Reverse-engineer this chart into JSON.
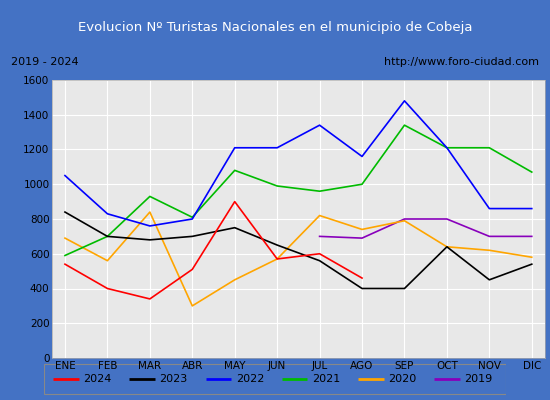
{
  "title": "Evolucion Nº Turistas Nacionales en el municipio de Cobeja",
  "subtitle_left": "2019 - 2024",
  "subtitle_right": "http://www.foro-ciudad.com",
  "months": [
    "ENE",
    "FEB",
    "MAR",
    "ABR",
    "MAY",
    "JUN",
    "JUL",
    "AGO",
    "SEP",
    "OCT",
    "NOV",
    "DIC"
  ],
  "series": {
    "2024": [
      540,
      400,
      340,
      510,
      900,
      570,
      600,
      460,
      null,
      null,
      null,
      null
    ],
    "2023": [
      840,
      700,
      680,
      700,
      750,
      650,
      560,
      400,
      400,
      640,
      450,
      540
    ],
    "2022": [
      1050,
      830,
      760,
      800,
      1210,
      1210,
      1340,
      1160,
      1480,
      1210,
      860,
      860
    ],
    "2021": [
      590,
      700,
      930,
      810,
      1080,
      990,
      960,
      1000,
      1340,
      1210,
      1210,
      1070
    ],
    "2020": [
      690,
      560,
      840,
      300,
      450,
      570,
      820,
      740,
      790,
      640,
      620,
      580
    ],
    "2019": [
      null,
      null,
      null,
      null,
      null,
      null,
      700,
      690,
      800,
      800,
      700,
      700
    ]
  },
  "colors": {
    "2024": "#ff0000",
    "2023": "#000000",
    "2022": "#0000ff",
    "2021": "#00bb00",
    "2020": "#ffa500",
    "2019": "#8800bb"
  },
  "ylim": [
    0,
    1600
  ],
  "yticks": [
    0,
    200,
    400,
    600,
    800,
    1000,
    1200,
    1400,
    1600
  ],
  "title_bg_color": "#4472c4",
  "title_font_color": "#ffffff",
  "plot_bg_color": "#e8e8e8",
  "outer_bg_color": "#ffffff",
  "grid_color": "#ffffff",
  "border_color": "#4472c4",
  "legend_order": [
    "2024",
    "2023",
    "2022",
    "2021",
    "2020",
    "2019"
  ]
}
